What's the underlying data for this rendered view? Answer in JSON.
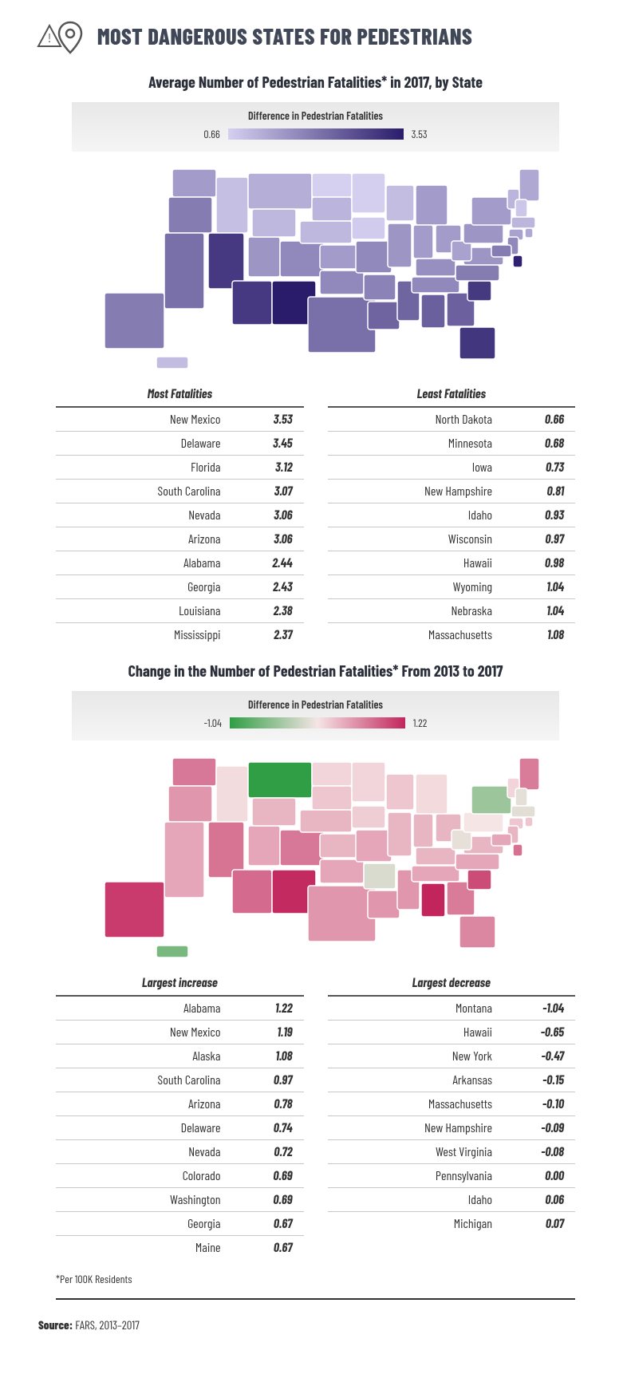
{
  "header": {
    "title": "MOST DANGEROUS STATES FOR PEDESTRIANS"
  },
  "section1": {
    "title": "Average Number of Pedestrian Fatalities* in 2017, by State",
    "legend": {
      "title": "Difference in Pedestrian Fatalities",
      "min": "0.66",
      "max": "3.53",
      "gradient_start": "#d5d0f0",
      "gradient_end": "#2a1c6b"
    },
    "map_color_low": "#c5bde6",
    "map_color_mid": "#8b7fc9",
    "map_color_high": "#4a3a9e",
    "left": {
      "title": "Most Fatalities",
      "rows": [
        {
          "state": "New Mexico",
          "val": "3.53"
        },
        {
          "state": "Delaware",
          "val": "3.45"
        },
        {
          "state": "Florida",
          "val": "3.12"
        },
        {
          "state": "South Carolina",
          "val": "3.07"
        },
        {
          "state": "Nevada",
          "val": "3.06"
        },
        {
          "state": "Arizona",
          "val": "3.06"
        },
        {
          "state": "Alabama",
          "val": "2.44"
        },
        {
          "state": "Georgia",
          "val": "2.43"
        },
        {
          "state": "Louisiana",
          "val": "2.38"
        },
        {
          "state": "Mississippi",
          "val": "2.37"
        }
      ]
    },
    "right": {
      "title": "Least Fatalities",
      "rows": [
        {
          "state": "North Dakota",
          "val": "0.66"
        },
        {
          "state": "Minnesota",
          "val": "0.68"
        },
        {
          "state": "Iowa",
          "val": "0.73"
        },
        {
          "state": "New Hampshire",
          "val": "0.81"
        },
        {
          "state": "Idaho",
          "val": "0.93"
        },
        {
          "state": "Wisconsin",
          "val": "0.97"
        },
        {
          "state": "Hawaii",
          "val": "0.98"
        },
        {
          "state": "Wyoming",
          "val": "1.04"
        },
        {
          "state": "Nebraska",
          "val": "1.04"
        },
        {
          "state": "Massachusetts",
          "val": "1.08"
        }
      ]
    }
  },
  "section2": {
    "title": "Change in the Number of Pedestrian Fatalities* From 2013 to 2017",
    "legend": {
      "title": "Difference in Pedestrian Fatalities",
      "min": "-1.04",
      "max": "1.22",
      "gradient_start": "#2f9e44",
      "gradient_mid": "#f5e5e5",
      "gradient_end": "#c2255c"
    },
    "map_color_neg": "#4fa95e",
    "map_color_neutral": "#f0d4d0",
    "map_color_pos": "#d66b6b",
    "map_color_high": "#b83556",
    "left": {
      "title": "Largest increase",
      "rows": [
        {
          "state": "Alabama",
          "val": "1.22"
        },
        {
          "state": "New Mexico",
          "val": "1.19"
        },
        {
          "state": "Alaska",
          "val": "1.08"
        },
        {
          "state": "South Carolina",
          "val": "0.97"
        },
        {
          "state": "Arizona",
          "val": "0.78"
        },
        {
          "state": "Delaware",
          "val": "0.74"
        },
        {
          "state": "Nevada",
          "val": "0.72"
        },
        {
          "state": "Colorado",
          "val": "0.69"
        },
        {
          "state": "Washington",
          "val": "0.69"
        },
        {
          "state": "Georgia",
          "val": "0.67"
        },
        {
          "state": "Maine",
          "val": "0.67"
        }
      ]
    },
    "right": {
      "title": "Largest decrease",
      "rows": [
        {
          "state": "Montana",
          "val": "-1.04"
        },
        {
          "state": "Hawaii",
          "val": "-0.65"
        },
        {
          "state": "New York",
          "val": "-0.47"
        },
        {
          "state": "Arkansas",
          "val": "-0.15"
        },
        {
          "state": "Massachusetts",
          "val": "-0.10"
        },
        {
          "state": "New Hampshire",
          "val": "-0.09"
        },
        {
          "state": "West Virginia",
          "val": "-0.08"
        },
        {
          "state": "Pennsylvania",
          "val": "0.00"
        },
        {
          "state": "Idaho",
          "val": "0.06"
        },
        {
          "state": "Michigan",
          "val": "0.07"
        }
      ]
    }
  },
  "footnote": "*Per 100K Residents",
  "source_label": "Source:",
  "source_text": "FARS, 2013–2017"
}
